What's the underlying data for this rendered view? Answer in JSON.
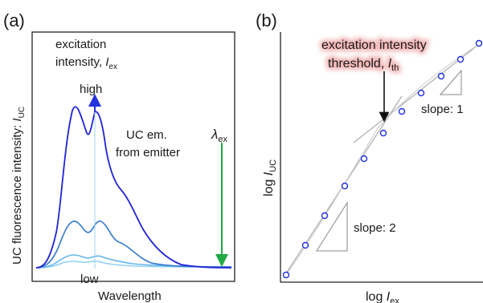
{
  "panel_a": {
    "label": "(a)",
    "ylabel": "UC fluorescence intensity: ",
    "ylabel_sub": "UC",
    "ylabel_var": "I",
    "xlabel": "Wavelength",
    "excitation_line1": "excitation",
    "excitation_line2_prefix": "intensity, ",
    "excitation_var": "I",
    "excitation_sub": "ex",
    "high_label": "high",
    "low_label": "low",
    "emission_line1": "UC em.",
    "emission_line2": "from emitter",
    "lambda_symbol": "λ",
    "lambda_sub": "ex",
    "colors": {
      "high": "#1f24d6",
      "mid": "#3b7fd0",
      "low": "#66b6ea",
      "lowest": "#8fd1f2",
      "excitation_arrow": "#22aa44",
      "intensity_arrow": "#2233dd"
    }
  },
  "panel_b": {
    "label": "(b)",
    "ylabel_prefix": "log ",
    "ylabel_var": "I",
    "ylabel_sub": "UC",
    "xlabel_prefix": "log ",
    "xlabel_var": "I",
    "xlabel_sub": "ex",
    "threshold_line1": "excitation intensity",
    "threshold_line2_prefix": "threshold, ",
    "threshold_var": "I",
    "threshold_sub": "th",
    "slope1_label": "slope: 1",
    "slope2_label": "slope: 2",
    "colors": {
      "points": "#1f2ee0",
      "fit_line": "#b0b0b0",
      "threshold_glow": "#f2b5b5"
    },
    "data_points_count": 12
  }
}
